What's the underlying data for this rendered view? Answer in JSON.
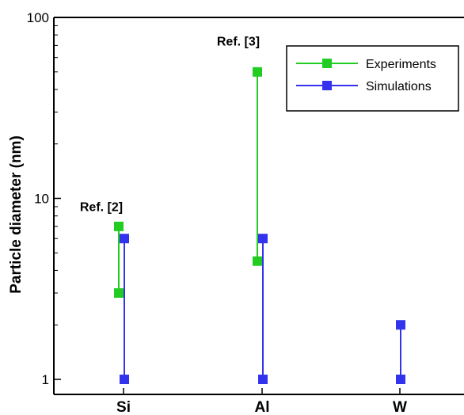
{
  "chart_data": {
    "type": "scatter",
    "title": "",
    "xlabel": "",
    "ylabel": "Particle diameter (nm)",
    "yscale": "log",
    "ylim": [
      1,
      100
    ],
    "y_ticks": [
      {
        "value": 1,
        "label": "1"
      },
      {
        "value": 10,
        "label": "10"
      },
      {
        "value": 100,
        "label": "100"
      }
    ],
    "categories": [
      "Si",
      "Al",
      "W"
    ],
    "grid": false,
    "legend_position": "top-right",
    "series": [
      {
        "name": "Experiments",
        "color": "#22cc22",
        "ranges": [
          {
            "category": "Si",
            "low": 3,
            "high": 7
          },
          {
            "category": "Al",
            "low": 4.5,
            "high": 50
          }
        ]
      },
      {
        "name": "Simulations",
        "color": "#3333ee",
        "ranges": [
          {
            "category": "Si",
            "low": 1,
            "high": 6
          },
          {
            "category": "Al",
            "low": 1,
            "high": 6
          },
          {
            "category": "W",
            "low": 1,
            "high": 2
          }
        ]
      }
    ],
    "annotations": [
      {
        "text": "Ref. [2]",
        "category": "Si",
        "value": 8.5
      },
      {
        "text": "Ref. [3]",
        "category": "Al",
        "value": 70
      }
    ]
  }
}
